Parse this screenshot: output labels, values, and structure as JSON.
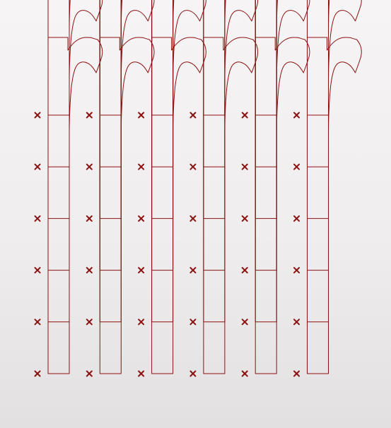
{
  "glyph": {
    "character": "r",
    "rows": 6,
    "columns": 6
  },
  "origin_marker": {
    "symbol": "×",
    "rows": 6,
    "columns": 6
  },
  "colors": {
    "stroke": "#8b1111",
    "marker": "#8b1111",
    "background_top": "#f6f4f4",
    "background_bottom": "#e2e0e0"
  }
}
